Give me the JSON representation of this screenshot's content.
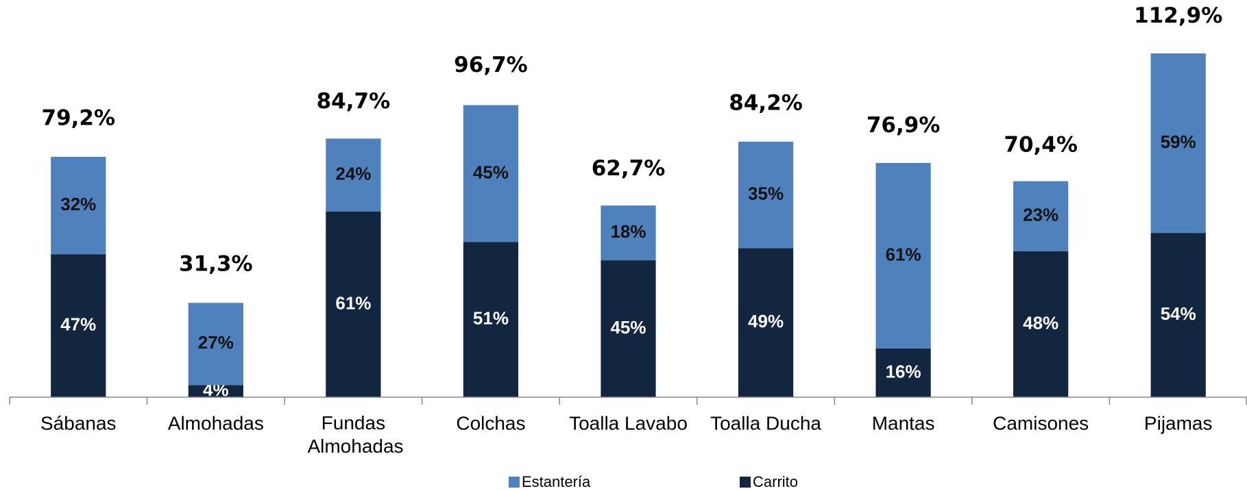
{
  "chart_data": {
    "type": "stacked_bar",
    "categories": [
      "Sábanas",
      "Almohadas",
      "Fundas Almohadas",
      "Colchas",
      "Toalla Lavabo",
      "Toalla Ducha",
      "Mantas",
      "Camisones",
      "Pijamas"
    ],
    "series": [
      {
        "name": "Carrito",
        "color": "#12263f",
        "label_color": "#ffffff",
        "values": [
          47,
          4,
          61,
          51,
          45,
          49,
          16,
          48,
          54
        ],
        "value_labels": [
          "47%",
          "4%",
          "61%",
          "51%",
          "45%",
          "49%",
          "16%",
          "48%",
          "54%"
        ]
      },
      {
        "name": "Estantería",
        "color": "#4f81bd",
        "label_color": "#111111",
        "values": [
          32,
          27,
          24,
          45,
          18,
          35,
          61,
          23,
          59
        ],
        "value_labels": [
          "32%",
          "27%",
          "24%",
          "45%",
          "18%",
          "35%",
          "61%",
          "23%",
          "59%"
        ]
      }
    ],
    "totals": {
      "values": [
        79.2,
        31.3,
        84.7,
        96.7,
        62.7,
        84.2,
        76.9,
        70.4,
        112.9
      ],
      "value_labels": [
        "79,2%",
        "31,3%",
        "84,7%",
        "96,7%",
        "62,7%",
        "84,2%",
        "76,9%",
        "70,4%",
        "112,9%"
      ]
    }
  }
}
